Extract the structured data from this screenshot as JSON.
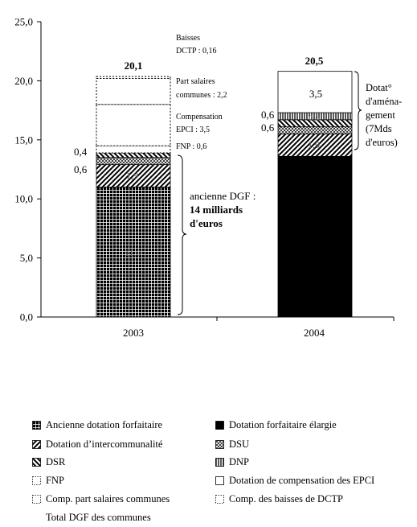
{
  "chart_data": {
    "type": "bar",
    "stacked": true,
    "categories": [
      "2003",
      "2004"
    ],
    "ylim": [
      0,
      25
    ],
    "yticks": [
      "0,0",
      "5,0",
      "10,0",
      "15,0",
      "20,0",
      "25,0"
    ],
    "ytick_values": [
      0,
      5,
      10,
      15,
      20,
      25
    ],
    "series": [
      {
        "name": "Ancienne dotation forfaitaire",
        "pattern": "grid",
        "values": [
          11.0,
          0
        ]
      },
      {
        "name": "Dotation forfaitaire élargie",
        "pattern": "solid",
        "values": [
          0,
          13.6
        ]
      },
      {
        "name": "Dotation d’intercommunalité",
        "pattern": "diag-fwd",
        "values": [
          1.9,
          1.9
        ]
      },
      {
        "name": "DSU",
        "pattern": "crosshatch",
        "values": [
          0.6,
          0.6
        ]
      },
      {
        "name": "DSR",
        "pattern": "diag-back",
        "values": [
          0.4,
          0.6
        ]
      },
      {
        "name": "DNP",
        "pattern": "vlines",
        "values": [
          0,
          0.6
        ]
      },
      {
        "name": "FNP",
        "pattern": "dotted",
        "values": [
          0.6,
          0
        ]
      },
      {
        "name": "Dotation de compensation des EPCI",
        "pattern": "white",
        "values": [
          3.5,
          3.5
        ]
      },
      {
        "name": "Comp. part salaires communes",
        "pattern": "dotted",
        "values": [
          2.2,
          0
        ]
      },
      {
        "name": "Comp. des baisses de DCTP",
        "pattern": "dotted",
        "values": [
          0.16,
          0
        ]
      }
    ],
    "totals_label": "Total DGF des communes",
    "totals": [
      "20,1",
      "20,5"
    ],
    "bar_labels": {
      "b2003_dsr": "0,4",
      "b2003_dsu": "0,6",
      "b2003_interco": "1,9",
      "b2003_base": "11,0",
      "b2004_compepci": "3,5",
      "b2004_dnp": "0,6",
      "b2004_dsu": "0,6",
      "b2004_interco": "1,9",
      "b2004_dnp_inner": "0,6"
    },
    "annotations": {
      "baisses_line1": "Baisses",
      "baisses_line2": "DCTP : 0,16",
      "part_salaires_line1": "Part salaires",
      "part_salaires_line2": "communes : 2,2",
      "compensation_line1": "Compensation",
      "compensation_line2": "EPCI : 3,5",
      "fnp": "FNP : 0,6",
      "ancienne_line1": "ancienne DGF :",
      "ancienne_line2": "14 milliards",
      "ancienne_line3": "d'euros",
      "dotat_line1": "Dotat°",
      "dotat_line2": "d'aména-",
      "dotat_line3": "gement",
      "dotat_line4": "(7Mds",
      "dotat_line5": "d'euros)"
    },
    "legend": [
      {
        "label": "Ancienne dotation forfaitaire",
        "pattern": "grid"
      },
      {
        "label": "Dotation forfaitaire élargie",
        "pattern": "solid"
      },
      {
        "label": "Dotation d’intercommunalité",
        "pattern": "diag-fwd"
      },
      {
        "label": "DSU",
        "pattern": "crosshatch"
      },
      {
        "label": "DSR",
        "pattern": "diag-back"
      },
      {
        "label": "DNP",
        "pattern": "vlines"
      },
      {
        "label": "FNP",
        "pattern": "dotted"
      },
      {
        "label": "Dotation de compensation des EPCI",
        "pattern": "white"
      },
      {
        "label": "Comp. part salaires communes",
        "pattern": "dotted"
      },
      {
        "label": "Comp. des baisses de DCTP",
        "pattern": "dotted"
      },
      {
        "label": "Total DGF des communes",
        "pattern": "none"
      }
    ],
    "grid": false,
    "legend_position": "bottom"
  }
}
